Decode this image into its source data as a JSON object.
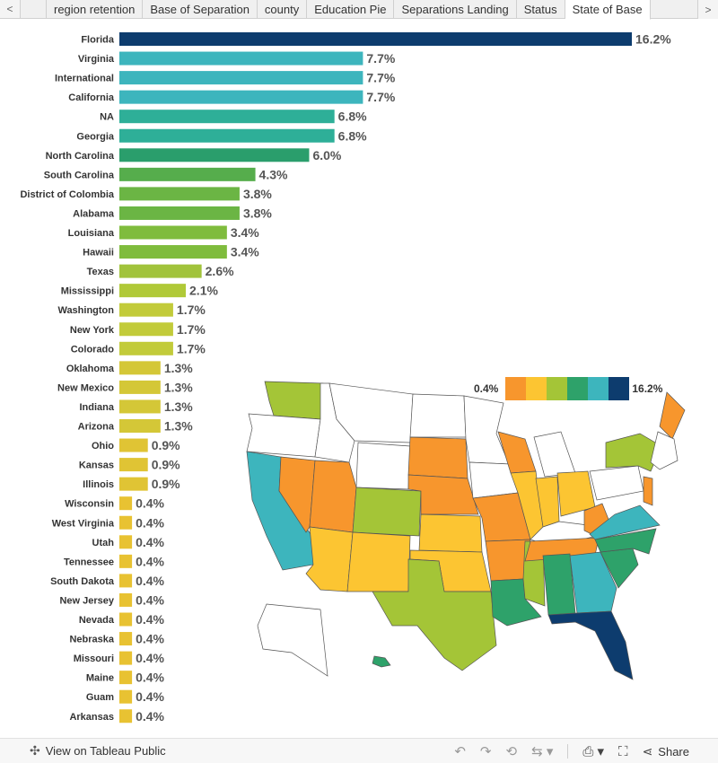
{
  "tabs": [
    {
      "label": "region retention",
      "active": false
    },
    {
      "label": "Base of Separation",
      "active": false
    },
    {
      "label": "county",
      "active": false
    },
    {
      "label": "Education Pie",
      "active": false
    },
    {
      "label": "Separations Landing",
      "active": false
    },
    {
      "label": "Status",
      "active": false
    },
    {
      "label": "State of Base",
      "active": true
    }
  ],
  "nav": {
    "prev": "<",
    "next": ">"
  },
  "legend": {
    "min_label": "0.4%",
    "max_label": "16.2%",
    "colors": [
      "#f7962d",
      "#fcc532",
      "#a4c537",
      "#2ea26a",
      "#3db5bd",
      "#0d3c6e"
    ]
  },
  "chart_data": {
    "type": "bar",
    "orientation": "horizontal",
    "categories": [
      "Florida",
      "Virginia",
      "International",
      "California",
      "NA",
      "Georgia",
      "North Carolina",
      "South Carolina",
      "District of Colombia",
      "Alabama",
      "Louisiana",
      "Hawaii",
      "Texas",
      "Mississippi",
      "Washington",
      "New York",
      "Colorado",
      "Oklahoma",
      "New Mexico",
      "Indiana",
      "Arizona",
      "Ohio",
      "Kansas",
      "Illinois",
      "Wisconsin",
      "West Virginia",
      "Utah",
      "Tennessee",
      "South Dakota",
      "New Jersey",
      "Nevada",
      "Nebraska",
      "Missouri",
      "Maine",
      "Guam",
      "Arkansas"
    ],
    "values": [
      16.2,
      7.7,
      7.7,
      7.7,
      6.8,
      6.8,
      6.0,
      4.3,
      3.8,
      3.8,
      3.4,
      3.4,
      2.6,
      2.1,
      1.7,
      1.7,
      1.7,
      1.3,
      1.3,
      1.3,
      1.3,
      0.9,
      0.9,
      0.9,
      0.4,
      0.4,
      0.4,
      0.4,
      0.4,
      0.4,
      0.4,
      0.4,
      0.4,
      0.4,
      0.4,
      0.4
    ],
    "value_labels": [
      "16.2%",
      "7.7%",
      "7.7%",
      "7.7%",
      "6.8%",
      "6.8%",
      "6.0%",
      "4.3%",
      "3.8%",
      "3.8%",
      "3.4%",
      "3.4%",
      "2.6%",
      "2.1%",
      "1.7%",
      "1.7%",
      "1.7%",
      "1.3%",
      "1.3%",
      "1.3%",
      "1.3%",
      "0.9%",
      "0.9%",
      "0.9%",
      "0.4%",
      "0.4%",
      "0.4%",
      "0.4%",
      "0.4%",
      "0.4%",
      "0.4%",
      "0.4%",
      "0.4%",
      "0.4%",
      "0.4%",
      "0.4%"
    ],
    "colors": [
      "#0d3c6e",
      "#3db5bd",
      "#3db5bd",
      "#3db5bd",
      "#2eaf98",
      "#2eaf98",
      "#2a9e6c",
      "#56ad4c",
      "#6bb544",
      "#6bb544",
      "#7fbc3d",
      "#7fbc3d",
      "#a1c33b",
      "#b0c938",
      "#c2cb3a",
      "#c2cb3a",
      "#c2cb3a",
      "#d4c737",
      "#d4c737",
      "#d4c737",
      "#d4c737",
      "#e0c434",
      "#e0c434",
      "#e0c434",
      "#e8c232",
      "#e8c232",
      "#e8c232",
      "#e8c232",
      "#e8c232",
      "#e8c232",
      "#e8c232",
      "#e8c232",
      "#e8c232",
      "#e8c232",
      "#e8c232",
      "#e8c232"
    ],
    "xlim": [
      0,
      16.2
    ],
    "grid": false,
    "legend": "top-right"
  },
  "map_colors": {
    "WA": "#a4c537",
    "OR": "#ffffff",
    "CA": "#3db5bd",
    "NV": "#f7962d",
    "ID": "#ffffff",
    "MT": "#ffffff",
    "WY": "#ffffff",
    "UT": "#f7962d",
    "AZ": "#fcc532",
    "CO": "#a4c537",
    "NM": "#fcc532",
    "ND": "#ffffff",
    "SD": "#f7962d",
    "NE": "#f7962d",
    "KS": "#fcc532",
    "OK": "#fcc532",
    "TX": "#a4c537",
    "MN": "#ffffff",
    "IA": "#ffffff",
    "MO": "#f7962d",
    "AR": "#f7962d",
    "LA": "#2ea26a",
    "WI": "#f7962d",
    "IL": "#fcc532",
    "MS": "#a4c537",
    "MI": "#ffffff",
    "IN": "#fcc532",
    "KY": "#ffffff",
    "TN": "#f7962d",
    "AL": "#2ea26a",
    "OH": "#fcc532",
    "WV": "#f7962d",
    "GA": "#3db5bd",
    "FL": "#0d3c6e",
    "SC": "#2ea26a",
    "NC": "#2ea26a",
    "VA": "#3db5bd",
    "PA": "#ffffff",
    "NY": "#a4c537",
    "NJ": "#f7962d",
    "ME": "#f7962d",
    "NE_small": "#ffffff",
    "AK": "#ffffff",
    "HI": "#2ea26a"
  },
  "footer": {
    "view_link": "View on Tableau Public",
    "share_label": "Share",
    "icons": [
      "tableau-logo-icon",
      "undo-icon",
      "redo-icon",
      "revert-icon",
      "refresh-icon",
      "download-icon",
      "fullscreen-icon",
      "share-icon"
    ]
  }
}
